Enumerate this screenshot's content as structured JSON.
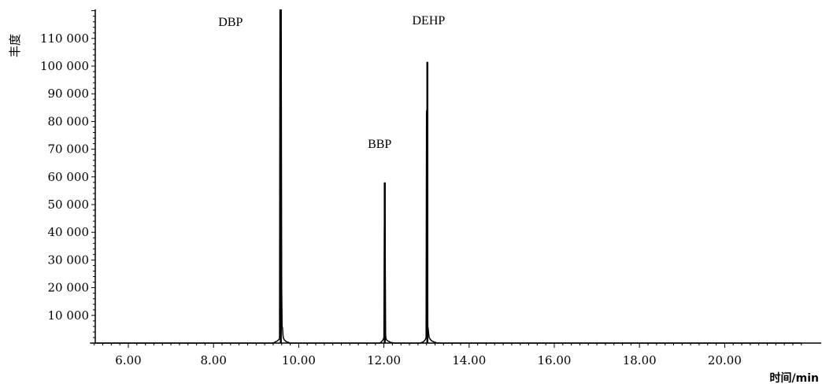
{
  "chart_data": {
    "type": "line",
    "title": "",
    "xlabel": "时间/min",
    "ylabel": "丰度",
    "xlim": [
      5.1,
      21.8
    ],
    "ylim": [
      0,
      120000
    ],
    "x_ticks": [
      6.0,
      8.0,
      10.0,
      12.0,
      14.0,
      16.0,
      18.0,
      20.0
    ],
    "x_tick_labels": [
      "6.00",
      "8.00",
      "10.00",
      "12.00",
      "14.00",
      "16.00",
      "18.00",
      "20.00"
    ],
    "y_ticks": [
      10000,
      20000,
      30000,
      40000,
      50000,
      60000,
      70000,
      80000,
      90000,
      100000,
      110000
    ],
    "y_tick_labels": [
      "10 000",
      "20 000",
      "30 000",
      "40 000",
      "50 000",
      "60 000",
      "70 000",
      "80 000",
      "90 000",
      "100 000",
      "110 000"
    ],
    "grid": false,
    "legend": "none",
    "peaks": [
      {
        "label": "DBP",
        "rt": 9.58,
        "height": 124000,
        "label_x": 8.4,
        "label_y": 114500
      },
      {
        "label": "BBP",
        "rt": 12.02,
        "height": 58000,
        "label_x": 11.9,
        "label_y": 70500
      },
      {
        "label": "DEHP",
        "rt": 13.02,
        "height": 101500,
        "label_x": 13.05,
        "label_y": 115000
      }
    ],
    "series": [
      {
        "x": [
          5.1,
          9.4,
          9.46,
          9.5,
          9.55,
          9.56,
          9.57,
          9.58,
          9.59,
          9.6,
          9.61,
          9.62,
          9.63,
          9.64,
          9.66,
          9.7,
          9.75,
          9.8,
          11.9,
          11.94,
          11.97,
          11.99,
          12.0,
          12.01,
          12.02,
          12.03,
          12.04,
          12.05,
          12.07,
          12.1,
          12.15,
          12.25,
          12.85,
          12.92,
          12.96,
          12.98,
          12.99,
          13.0,
          13.01,
          13.02,
          13.03,
          13.04,
          13.05,
          13.06,
          13.08,
          13.12,
          13.18,
          13.25,
          21.8
        ],
        "y": [
          0,
          0,
          500,
          800,
          1500,
          124000,
          60000,
          124000,
          105000,
          20000,
          6000,
          5500,
          3000,
          1800,
          1200,
          600,
          300,
          0,
          0,
          400,
          1000,
          1500,
          2000,
          40000,
          58000,
          35000,
          3000,
          1500,
          1000,
          700,
          300,
          0,
          0,
          400,
          1000,
          1500,
          2000,
          84000,
          30000,
          101500,
          6000,
          5000,
          3500,
          2200,
          1500,
          800,
          400,
          0,
          0
        ]
      }
    ]
  }
}
